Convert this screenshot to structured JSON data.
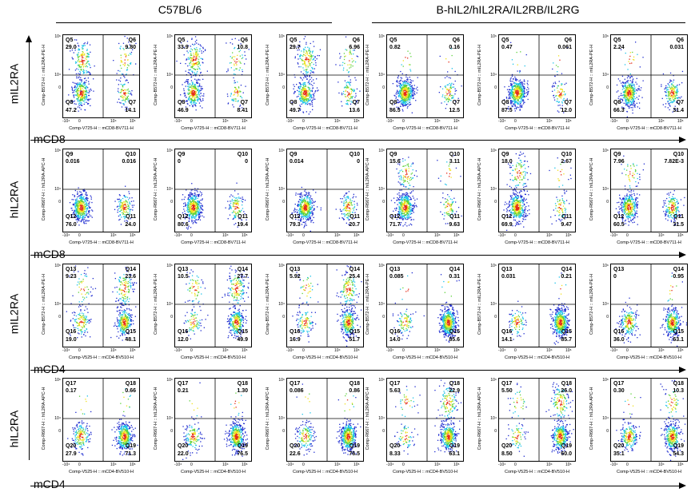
{
  "groups": {
    "left": "C57BL/6",
    "right": "B-hIL2/hIL2RA/IL2RB/IL2RG"
  },
  "row_labels": [
    "mIL2RA",
    "hIL2RA",
    "mIL2RA",
    "hIL2RA"
  ],
  "x_labels": [
    "mCD8",
    "mCD8",
    "mCD4",
    "mCD4"
  ],
  "tick_labels": {
    "y_top": "10⁶",
    "y_mid": "10⁴",
    "y_zero": "0",
    "x_neg": "-10⁴",
    "x_zero": "0",
    "x_mid": "10⁴",
    "x_top": "10⁶"
  },
  "colors": {
    "low": "#1f2ccf",
    "mid": "#19c2e8",
    "midhigh": "#5cd23a",
    "high": "#f0e01b",
    "peak": "#e42a17"
  },
  "chart_data": {
    "type": "scatter",
    "description_free": true,
    "rows": [
      {
        "y_axis": "Comp-B572-H :: mIL2RA-PE-H",
        "x_axis": "Comp-V725-H :: mCD8-BV711-H",
        "quadrants": [
          "Q5",
          "Q6",
          "Q7",
          "Q8"
        ],
        "panels": [
          {
            "ul": "29.0",
            "ur": "9.80",
            "lr": "14.1",
            "ll": "47.2"
          },
          {
            "ul": "33.9",
            "ur": "10.8",
            "lr": "8.41",
            "ll": "46.9"
          },
          {
            "ul": "29.7",
            "ur": "6.96",
            "lr": "13.6",
            "ll": "49.7"
          },
          {
            "ul": "0.82",
            "ur": "0.16",
            "lr": "12.5",
            "ll": "86.5"
          },
          {
            "ul": "0.47",
            "ur": "0.061",
            "lr": "12.0",
            "ll": "87.5"
          },
          {
            "ul": "2.24",
            "ur": "0.031",
            "lr": "31.4",
            "ll": "66.3"
          }
        ]
      },
      {
        "y_axis": "Comp-R667-H :: hIL2RA-APC-H",
        "x_axis": "Comp-V725-H :: mCD8-BV711-H",
        "quadrants": [
          "Q9",
          "Q10",
          "Q11",
          "Q12"
        ],
        "panels": [
          {
            "ul": "0.016",
            "ur": "0.016",
            "lr": "24.0",
            "ll": "76.0"
          },
          {
            "ul": "0",
            "ur": "0",
            "lr": "19.4",
            "ll": "80.6"
          },
          {
            "ul": "0.014",
            "ur": "0",
            "lr": "20.7",
            "ll": "79.3"
          },
          {
            "ul": "15.6",
            "ur": "3.11",
            "lr": "9.63",
            "ll": "71.7"
          },
          {
            "ul": "18.0",
            "ur": "2.67",
            "lr": "9.47",
            "ll": "69.9"
          },
          {
            "ul": "7.96",
            "ur": "7.82E-3",
            "lr": "31.5",
            "ll": "60.5"
          }
        ]
      },
      {
        "y_axis": "Comp-B572-H :: mIL2RA-PE-H",
        "x_axis": "Comp-V525-H :: mCD4-BV510-H",
        "quadrants": [
          "Q13",
          "Q14",
          "Q15",
          "Q16"
        ],
        "panels": [
          {
            "ul": "9.23",
            "ur": "23.6",
            "lr": "48.1",
            "ll": "19.0"
          },
          {
            "ul": "10.5",
            "ur": "27.7",
            "lr": "49.9",
            "ll": "12.0"
          },
          {
            "ul": "5.92",
            "ur": "25.4",
            "lr": "51.7",
            "ll": "16.9"
          },
          {
            "ul": "0.085",
            "ur": "0.31",
            "lr": "85.6",
            "ll": "14.0"
          },
          {
            "ul": "0.031",
            "ur": "0.21",
            "lr": "85.7",
            "ll": "14.1"
          },
          {
            "ul": "0",
            "ur": "0.95",
            "lr": "63.1",
            "ll": "36.0"
          }
        ]
      },
      {
        "y_axis": "Comp-R667-H :: hIL2RA-APC-H",
        "x_axis": "Comp-V525-H :: mCD4-BV510-H",
        "quadrants": [
          "Q17",
          "Q18",
          "Q19",
          "Q20"
        ],
        "panels": [
          {
            "ul": "0.17",
            "ur": "0.66",
            "lr": "71.3",
            "ll": "27.9"
          },
          {
            "ul": "0.21",
            "ur": "1.30",
            "lr": "76.5",
            "ll": "22.0"
          },
          {
            "ul": "0.086",
            "ur": "0.86",
            "lr": "76.5",
            "ll": "22.6"
          },
          {
            "ul": "5.63",
            "ur": "22.9",
            "lr": "63.1",
            "ll": "8.33"
          },
          {
            "ul": "5.50",
            "ur": "26.0",
            "lr": "60.0",
            "ll": "8.50"
          },
          {
            "ul": "0.30",
            "ur": "10.3",
            "lr": "54.3",
            "ll": "35.1"
          }
        ]
      }
    ]
  }
}
